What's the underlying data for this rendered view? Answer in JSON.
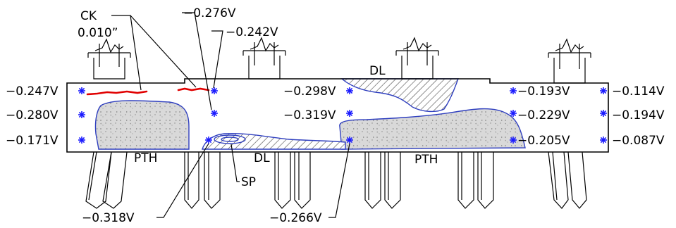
{
  "colors": {
    "outline": "#000000",
    "patch_edge": "#2f3fbf",
    "crack": "#e00000",
    "reading_marker": "#1a1aff",
    "concrete_fill": "#d6d6d6"
  },
  "icons": {
    "reading_marker": "asterisk-icon",
    "bearing": "bearing-break-icon"
  },
  "labels": {
    "ck": "CK",
    "ck_width": "0.010”",
    "pth_left": "PTH",
    "pth_right": "PTH",
    "dl_top": "DL",
    "dl_bottom": "DL",
    "sp": "SP"
  },
  "readings": {
    "left_top": "−0.247V",
    "left_mid": "−0.280V",
    "left_bot": "−0.171V",
    "top_276": "−0.276V",
    "top_242": "−0.242V",
    "center_top": "−0.298V",
    "center_mid": "−0.319V",
    "right_a_top": "−0.193V",
    "right_a_mid": "−0.229V",
    "right_a_bot": "−0.205V",
    "right_b_top": "−0.114V",
    "right_b_mid": "−0.194V",
    "right_b_bot": "−0.087V",
    "bottom_318": "−0.318V",
    "bottom_266": "−0.266V"
  }
}
